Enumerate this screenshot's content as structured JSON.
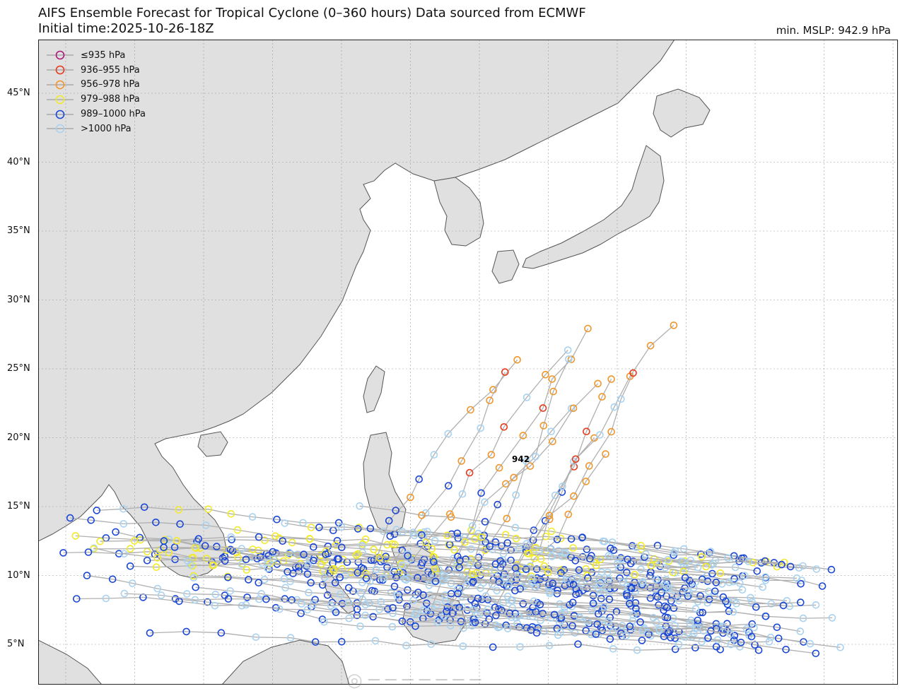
{
  "header": {
    "title_line1": "AIFS Ensemble Forecast for Tropical Cyclone (0–360 hours) Data sourced from ECMWF",
    "title_line2": "Initial time:2025-10-26-18Z",
    "min_mslp": "min. MSLP: 942.9 hPa"
  },
  "map": {
    "lat_labels": [
      {
        "label": "45°N",
        "lat": 45
      },
      {
        "label": "40°N",
        "lat": 40
      },
      {
        "label": "35°N",
        "lat": 35
      },
      {
        "label": "30°N",
        "lat": 30
      },
      {
        "label": "25°N",
        "lat": 25
      },
      {
        "label": "20°N",
        "lat": 20
      },
      {
        "label": "15°N",
        "lat": 15
      },
      {
        "label": "10°N",
        "lat": 10
      },
      {
        "label": "5°N",
        "lat": 5
      }
    ],
    "min_marker_label": "942",
    "land_color": "#e0e0e0",
    "track_color": "#b0b0b0"
  },
  "legend": {
    "items": [
      {
        "label": "≤935 hPa",
        "color": "#b0157a"
      },
      {
        "label": "936–955 hPa",
        "color": "#e8391a"
      },
      {
        "label": "956–978 hPa",
        "color": "#f0962a"
      },
      {
        "label": "979–988 hPa",
        "color": "#f2ea2a"
      },
      {
        "label": "989–1000 hPa",
        "color": "#1a46d6"
      },
      {
        "label": ">1000 hPa",
        "color": "#a8d2f0"
      }
    ]
  }
}
